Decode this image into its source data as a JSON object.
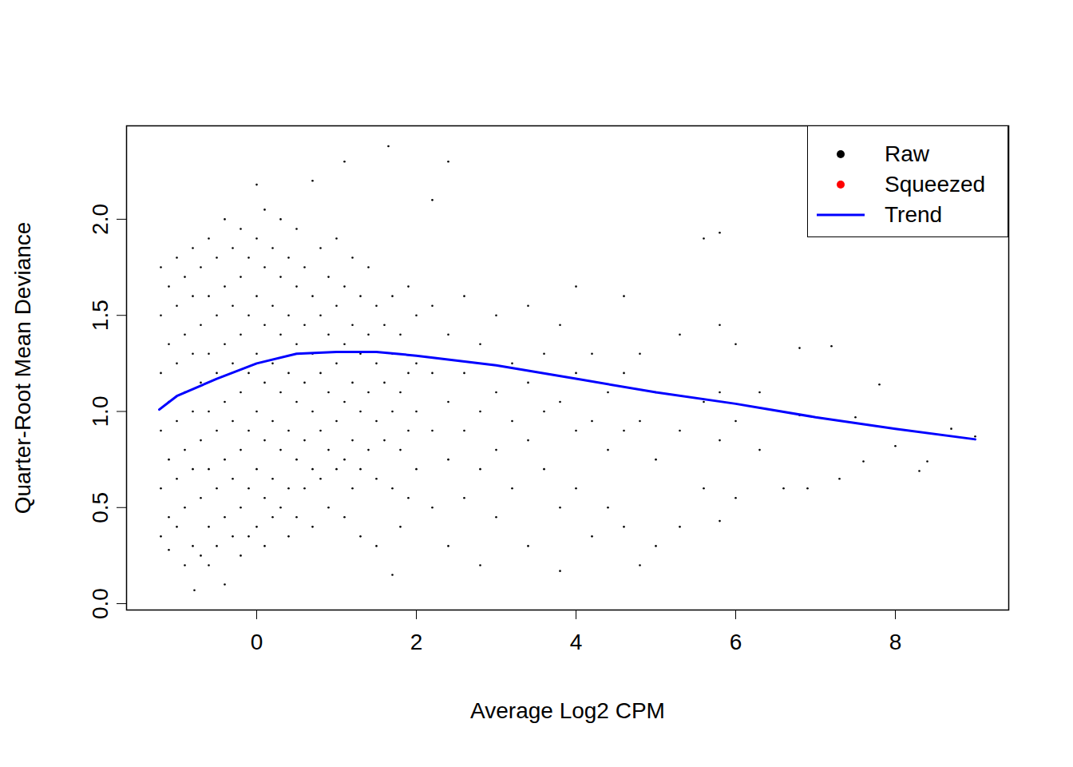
{
  "chart_data": {
    "type": "scatter",
    "x_label": "Average Log2 CPM",
    "y_label": "Quarter-Root Mean Deviance",
    "xlim": [
      -1.63,
      9.42
    ],
    "ylim": [
      -0.033,
      2.486
    ],
    "xticks": [
      0,
      2,
      4,
      6,
      8
    ],
    "yticks": [
      {
        "value": 0,
        "label": "0.0"
      },
      {
        "value": 0.5,
        "label": "0.5"
      },
      {
        "value": 1,
        "label": "1.0"
      },
      {
        "value": 1.5,
        "label": "1.5"
      },
      {
        "value": 2,
        "label": "2.0"
      }
    ],
    "legend": "top-right",
    "grid": false,
    "series": [
      {
        "name": "Raw",
        "type": "scatter",
        "color": "#000000",
        "marker": "point",
        "x": [
          -1.2,
          -1.2,
          -1.2,
          -1.2,
          -1.2,
          -1.2,
          -1.1,
          -1.1,
          -1.1,
          -1.1,
          -1.1,
          -1.1,
          -1.0,
          -1.0,
          -1.0,
          -1.0,
          -1.0,
          -1.0,
          -0.9,
          -0.9,
          -0.9,
          -0.9,
          -0.9,
          -0.9,
          -0.8,
          -0.8,
          -0.8,
          -0.8,
          -0.8,
          -0.8,
          -0.78,
          -0.7,
          -0.7,
          -0.7,
          -0.7,
          -0.7,
          -0.7,
          -0.6,
          -0.6,
          -0.6,
          -0.6,
          -0.6,
          -0.6,
          -0.6,
          -0.5,
          -0.5,
          -0.5,
          -0.5,
          -0.5,
          -0.5,
          -0.4,
          -0.4,
          -0.4,
          -0.4,
          -0.4,
          -0.4,
          -0.4,
          -0.3,
          -0.3,
          -0.3,
          -0.3,
          -0.3,
          -0.3,
          -0.2,
          -0.2,
          -0.2,
          -0.2,
          -0.2,
          -0.2,
          -0.2,
          -0.1,
          -0.1,
          -0.1,
          -0.1,
          -0.1,
          -0.1,
          0,
          0,
          0,
          0,
          0,
          0,
          0,
          0.1,
          0.1,
          0.1,
          0.1,
          0.1,
          0.1,
          0.1,
          0.2,
          0.2,
          0.2,
          0.2,
          0.2,
          0.2,
          0.3,
          0.3,
          0.3,
          0.3,
          0.3,
          0.3,
          0.4,
          0.4,
          0.4,
          0.4,
          0.4,
          0.4,
          0.5,
          0.5,
          0.5,
          0.5,
          0.5,
          0.5,
          0.6,
          0.6,
          0.6,
          0.6,
          0.6,
          0.7,
          0.7,
          0.7,
          0.7,
          0.7,
          0.7,
          0.8,
          0.8,
          0.8,
          0.8,
          0.8,
          0.9,
          0.9,
          0.9,
          0.9,
          0.9,
          1.0,
          1.0,
          1.0,
          1.0,
          1.0,
          1.1,
          1.1,
          1.1,
          1.1,
          1.1,
          1.1,
          1.2,
          1.2,
          1.2,
          1.2,
          1.2,
          1.3,
          1.3,
          1.3,
          1.3,
          1.3,
          1.4,
          1.4,
          1.4,
          1.4,
          1.5,
          1.5,
          1.5,
          1.5,
          1.5,
          1.65,
          1.6,
          1.6,
          1.6,
          1.7,
          1.7,
          1.7,
          1.7,
          1.7,
          1.8,
          1.8,
          1.8,
          1.8,
          1.9,
          1.9,
          1.9,
          1.9,
          2.0,
          2.0,
          2.0,
          2.0,
          2.2,
          2.2,
          2.2,
          2.2,
          2.2,
          2.4,
          2.4,
          2.4,
          2.4,
          2.4,
          2.6,
          2.6,
          2.6,
          2.6,
          2.8,
          2.8,
          2.8,
          2.8,
          3.0,
          3.0,
          3.0,
          3.0,
          3.2,
          3.2,
          3.2,
          3.4,
          3.4,
          3.4,
          3.4,
          3.6,
          3.6,
          3.6,
          3.8,
          3.8,
          3.8,
          3.8,
          4.0,
          4.0,
          4.0,
          4.0,
          4.2,
          4.2,
          4.2,
          4.4,
          4.4,
          4.4,
          4.6,
          4.6,
          4.6,
          4.6,
          4.8,
          4.8,
          4.8,
          5.0,
          5.0,
          5.0,
          5.3,
          5.3,
          5.3,
          5.6,
          5.6,
          5.6,
          5.8,
          5.8,
          5.8,
          5.8,
          5.8,
          6.0,
          6.0,
          6.0,
          6.3,
          6.3,
          6.6,
          6.8,
          6.8,
          6.9,
          7.2,
          7.3,
          7.5,
          7.6,
          7.8,
          8.0,
          8.3,
          8.4,
          8.7,
          9.0
        ],
        "values": [
          1.75,
          1.5,
          1.2,
          0.9,
          0.6,
          0.35,
          1.65,
          1.35,
          1.05,
          0.75,
          0.45,
          0.28,
          1.8,
          1.55,
          1.25,
          0.95,
          0.65,
          0.4,
          1.7,
          1.4,
          1.1,
          0.8,
          0.5,
          0.2,
          1.85,
          1.6,
          1.3,
          1.0,
          0.7,
          0.3,
          0.07,
          1.75,
          1.45,
          1.15,
          0.85,
          0.55,
          0.25,
          1.9,
          1.6,
          1.3,
          1.0,
          0.7,
          0.4,
          0.2,
          1.8,
          1.5,
          1.2,
          0.9,
          0.6,
          0.3,
          2.0,
          1.65,
          1.35,
          1.05,
          0.75,
          0.45,
          0.1,
          1.85,
          1.55,
          1.25,
          0.95,
          0.65,
          0.35,
          1.95,
          1.7,
          1.4,
          1.1,
          0.8,
          0.5,
          0.25,
          1.8,
          1.5,
          1.2,
          0.9,
          0.6,
          0.35,
          2.18,
          1.9,
          1.6,
          1.3,
          1.0,
          0.7,
          0.4,
          2.05,
          1.75,
          1.45,
          1.15,
          0.85,
          0.55,
          0.3,
          1.85,
          1.55,
          1.25,
          0.95,
          0.65,
          0.45,
          2.0,
          1.7,
          1.4,
          1.1,
          0.8,
          0.5,
          1.8,
          1.5,
          1.2,
          0.9,
          0.6,
          0.35,
          1.95,
          1.65,
          1.35,
          1.05,
          0.75,
          0.45,
          1.75,
          1.45,
          1.15,
          0.85,
          0.6,
          2.2,
          1.6,
          1.3,
          1.0,
          0.7,
          0.4,
          1.85,
          1.5,
          1.2,
          0.9,
          0.65,
          1.7,
          1.4,
          1.1,
          0.8,
          0.5,
          1.9,
          1.55,
          1.25,
          0.95,
          0.7,
          2.3,
          1.65,
          1.35,
          1.05,
          0.75,
          0.45,
          1.8,
          1.45,
          1.15,
          0.85,
          0.6,
          1.6,
          1.3,
          1.0,
          0.7,
          0.35,
          1.75,
          1.4,
          1.1,
          0.8,
          1.55,
          1.25,
          0.95,
          0.65,
          0.3,
          2.38,
          1.45,
          1.15,
          0.85,
          1.6,
          1.3,
          1.0,
          0.6,
          0.15,
          1.4,
          1.1,
          0.8,
          0.4,
          1.65,
          1.2,
          0.9,
          0.55,
          1.5,
          1.25,
          1.0,
          0.7,
          1.55,
          1.2,
          0.9,
          0.5,
          2.1,
          2.3,
          1.4,
          1.05,
          0.75,
          0.3,
          1.6,
          1.2,
          0.9,
          0.55,
          1.35,
          1.0,
          0.7,
          0.2,
          1.5,
          1.1,
          0.8,
          0.45,
          1.25,
          0.95,
          0.6,
          1.55,
          1.15,
          0.85,
          0.3,
          1.3,
          1.0,
          0.7,
          1.45,
          1.05,
          0.5,
          0.17,
          1.65,
          1.2,
          0.9,
          0.6,
          1.3,
          0.95,
          0.35,
          1.1,
          0.8,
          0.5,
          1.6,
          1.2,
          0.9,
          0.4,
          1.3,
          0.95,
          0.2,
          1.1,
          0.75,
          0.3,
          1.4,
          0.9,
          0.4,
          1.9,
          1.05,
          0.6,
          1.93,
          1.45,
          1.1,
          0.85,
          0.43,
          1.35,
          0.95,
          0.55,
          1.1,
          0.8,
          0.6,
          1.33,
          0.98,
          0.6,
          1.34,
          0.65,
          0.97,
          0.74,
          1.14,
          0.82,
          0.69,
          0.74,
          0.91,
          0.87
        ]
      },
      {
        "name": "Squeezed",
        "type": "scatter",
        "color": "#ff0000",
        "marker": "point",
        "x": [],
        "values": []
      },
      {
        "name": "Trend",
        "type": "line",
        "color": "#0000ff",
        "line_style": "solid",
        "x": [
          -1.22,
          -1.0,
          -0.5,
          0,
          0.5,
          1.0,
          1.5,
          2,
          3,
          4,
          5,
          6,
          7,
          8,
          9
        ],
        "values": [
          1.01,
          1.08,
          1.17,
          1.25,
          1.3,
          1.31,
          1.31,
          1.29,
          1.24,
          1.17,
          1.1,
          1.04,
          0.97,
          0.91,
          0.855
        ]
      }
    ]
  }
}
